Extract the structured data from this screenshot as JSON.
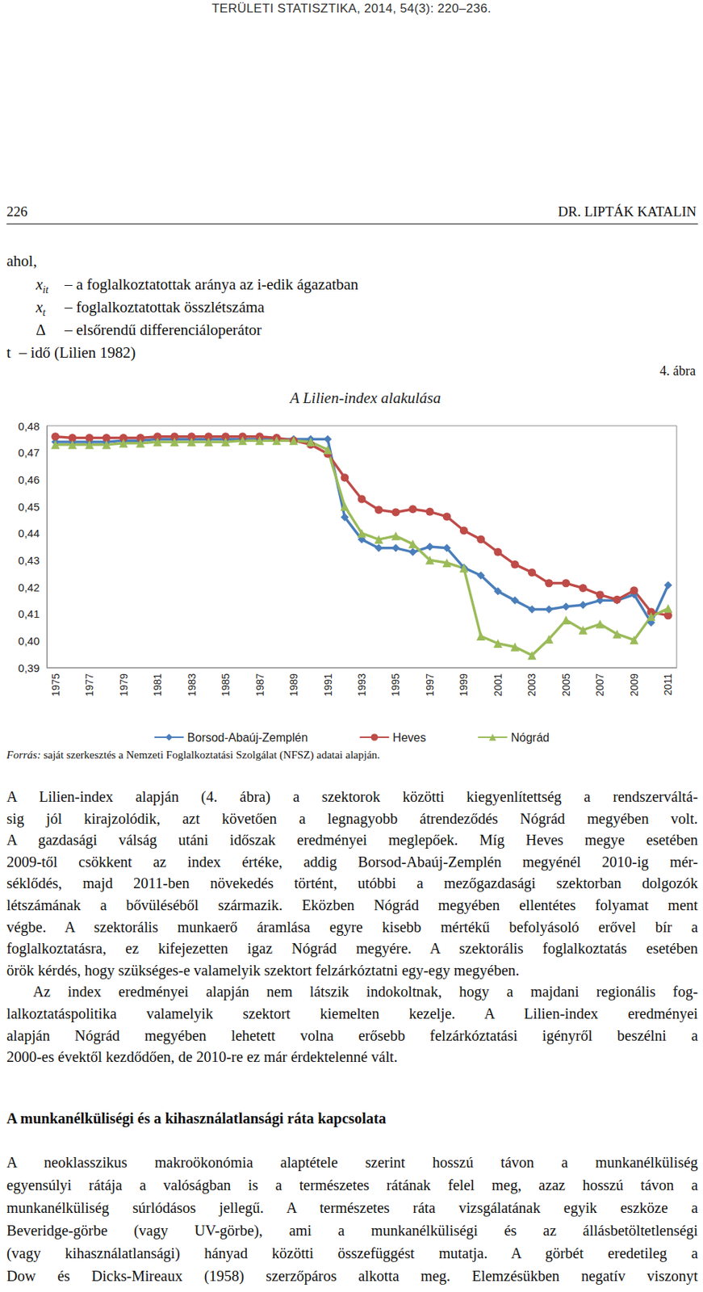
{
  "journal_header": "TERÜLETI STATISZTIKA, 2014, 54(3): 220–236.",
  "page_number": "226",
  "running_head": "DR. LIPTÁK KATALIN",
  "intro": "ahol,",
  "definitions": [
    {
      "symbol": "x",
      "sub": "it",
      "text": "– a foglalkoztatottak aránya az i-edik ágazatban"
    },
    {
      "symbol": "x",
      "sub": "t",
      "text": "– foglalkoztatottak összlétszáma"
    },
    {
      "symbol": "Δ",
      "text": "– elsőrendű differenciáloperátor"
    },
    {
      "symbol": "t",
      "text": "– idő (Lilien 1982)"
    }
  ],
  "figure_label": "4. ábra",
  "chart_data": {
    "type": "line",
    "title": "A Lilien-index alakulása",
    "categories": [
      "1975",
      null,
      "1977",
      null,
      "1979",
      null,
      "1981",
      null,
      "1983",
      null,
      "1985",
      null,
      "1987",
      null,
      "1989",
      null,
      "1991",
      null,
      "1993",
      null,
      "1995",
      null,
      "1997",
      null,
      "1999",
      null,
      "2001",
      null,
      "2003",
      null,
      "2005",
      null,
      "2007",
      null,
      "2009",
      null,
      "2011"
    ],
    "series": [
      {
        "name": "Borsod-Abaúj-Zemplén",
        "color": "#4a7ebb",
        "marker": "diamond",
        "values": [
          0.474,
          0.474,
          0.474,
          0.474,
          0.4745,
          0.4745,
          0.475,
          0.475,
          0.475,
          0.475,
          0.475,
          0.475,
          0.475,
          0.475,
          0.475,
          0.475,
          0.475,
          0.446,
          0.4377,
          0.4345,
          0.4345,
          0.433,
          0.435,
          0.4345,
          0.4272,
          0.4243,
          0.4184,
          0.415,
          0.4117,
          0.4117,
          0.4127,
          0.4133,
          0.415,
          0.415,
          0.4172,
          0.4068,
          0.4207
        ]
      },
      {
        "name": "Heves",
        "color": "#be4b48",
        "marker": "circle",
        "values": [
          0.476,
          0.4755,
          0.4755,
          0.4755,
          0.4755,
          0.4755,
          0.476,
          0.476,
          0.476,
          0.476,
          0.476,
          0.476,
          0.476,
          0.4755,
          0.4745,
          0.473,
          0.4696,
          0.4607,
          0.4527,
          0.4487,
          0.4478,
          0.449,
          0.448,
          0.4462,
          0.441,
          0.4377,
          0.433,
          0.4284,
          0.4254,
          0.4214,
          0.4214,
          0.4196,
          0.4171,
          0.4153,
          0.4187,
          0.4107,
          0.4094
        ]
      },
      {
        "name": "Nógrád",
        "color": "#9bbb59",
        "marker": "triangle",
        "values": [
          0.473,
          0.473,
          0.473,
          0.473,
          0.4735,
          0.4735,
          0.474,
          0.474,
          0.474,
          0.474,
          0.474,
          0.4745,
          0.4745,
          0.4745,
          0.4745,
          0.474,
          0.4711,
          0.45,
          0.44,
          0.4377,
          0.439,
          0.436,
          0.43,
          0.429,
          0.427,
          0.4017,
          0.399,
          0.3977,
          0.3946,
          0.4006,
          0.4077,
          0.404,
          0.4062,
          0.4025,
          0.4003,
          0.409,
          0.412
        ]
      }
    ],
    "ylim": [
      0.39,
      0.48
    ],
    "yticks": [
      {
        "value": 0.39,
        "label": "0,39"
      },
      {
        "value": 0.4,
        "label": "0,40"
      },
      {
        "value": 0.41,
        "label": "0,41"
      },
      {
        "value": 0.42,
        "label": "0,42"
      },
      {
        "value": 0.43,
        "label": "0,43"
      },
      {
        "value": 0.44,
        "label": "0,44"
      },
      {
        "value": 0.45,
        "label": "0,45"
      },
      {
        "value": 0.46,
        "label": "0,46"
      },
      {
        "value": 0.47,
        "label": "0,47"
      },
      {
        "value": 0.48,
        "label": "0,48"
      }
    ],
    "grid": false,
    "legend": "bottom"
  },
  "source": {
    "label": "Forrás:",
    "text": "saját szerkesztés a Nemzeti Foglalkoztatási Szolgálat (NFSZ) adatai alapján."
  },
  "body": [
    {
      "type": "paragraph",
      "lines": [
        "A Lilien-index alapján (4. ábra) a szektorok közötti kiegyenlítettség a rendszerváltá-",
        "sig jól kirajzolódik, azt követően a legnagyobb átrendeződés Nógrád megyében volt.",
        "A gazdasági válság utáni időszak eredményei meglepőek. Míg Heves megye esetében",
        "2009-től csökkent az index értéke, addig Borsod-Abaúj-Zemplén megyénél 2010-ig mér-",
        "séklődés, majd 2011-ben növekedés történt, utóbbi a mezőgazdasági szektorban dolgozók",
        "létszámának a bővüléséből származik. Eközben Nógrád megyében ellentétes folyamat ment",
        "végbe. A szektorális munkaerő áramlása egyre kisebb mértékű befolyásoló erővel bír a",
        "foglalkoztatásra, ez kifejezetten igaz Nógrád megyére. A szektorális foglalkoztatás esetében",
        "örök kérdés, hogy szükséges-e valamelyik szektort felzárkóztatni egy-egy megyében."
      ]
    },
    {
      "type": "paragraph",
      "lines": [
        "Az index eredményei alapján nem látszik indokoltnak, hogy a majdani regionális fog-",
        "lalkoztatáspolitika valamelyik szektort kiemelten kezelje. A Lilien-index eredményei",
        "alapján Nógrád megyében lehetett volna erősebb felzárkóztatási igényről beszélni a",
        "2000-es évektől kezdődően, de 2010-re ez már érdektelenné vált."
      ]
    },
    {
      "type": "heading",
      "text": "A munkanélküliségi és a kihasználatlansági ráta kapcsolata"
    },
    {
      "type": "paragraph",
      "lines": [
        "A neoklasszikus makroökonómia alaptétele szerint hosszú távon a munkanélküliség",
        "egyensúlyi rátája a valóságban is a természetes rátának felel meg, azaz hosszú távon a",
        "munkanélküliség súrlódásos jellegű. A természetes ráta vizsgálatának egyik eszköze a",
        "Beveridge-görbe (vagy UV-görbe), ami a munkanélküliségi és az állásbetöltetlenségi",
        "(vagy kihasználatlansági) hányad közötti összefüggést mutatja. A görbét eredetileg a",
        "Dow és Dicks-Mireaux (1958) szerzőpáros alkotta meg. Elemzésükben negatív viszonyt"
      ]
    }
  ]
}
